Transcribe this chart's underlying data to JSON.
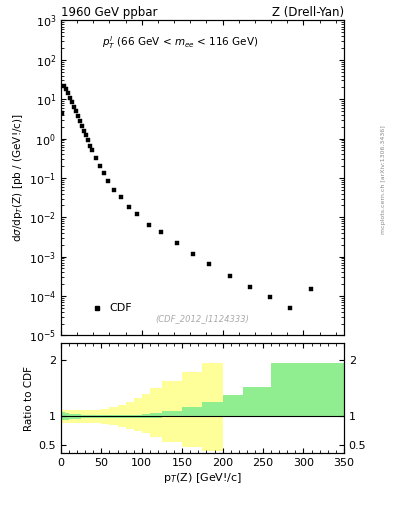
{
  "title_left": "1960 GeV ppbar",
  "title_right": "Z (Drell-Yan)",
  "watermark": "(CDF_2012_I1124333)",
  "arxiv_text": "mcplots.cern.ch [arXiv:1306.3436]",
  "ylabel_bottom": "Ratio to CDF",
  "legend_label": "CDF",
  "data_x": [
    1.25,
    3.75,
    6.25,
    8.75,
    11.25,
    13.75,
    16.25,
    18.75,
    21.25,
    23.75,
    26.25,
    28.75,
    31.25,
    33.75,
    36.25,
    38.75,
    43.75,
    48.75,
    53.75,
    58.75,
    66.25,
    73.75,
    83.75,
    93.75,
    108.75,
    123.75,
    143.75,
    163.75,
    183.75,
    208.75,
    233.75,
    258.75,
    283.75,
    308.75
  ],
  "data_y": [
    4.5,
    22.0,
    18.0,
    14.0,
    11.0,
    8.5,
    6.5,
    5.0,
    3.8,
    2.8,
    2.1,
    1.6,
    1.2,
    0.9,
    0.65,
    0.5,
    0.32,
    0.2,
    0.13,
    0.085,
    0.048,
    0.032,
    0.018,
    0.012,
    0.0065,
    0.0042,
    0.0022,
    0.0012,
    0.00065,
    0.00032,
    0.00017,
    9.5e-05,
    5e-05,
    0.00015
  ],
  "ratio_bin_edges": [
    0,
    5,
    10,
    15,
    20,
    25,
    30,
    35,
    40,
    50,
    60,
    70,
    80,
    90,
    100,
    110,
    125,
    150,
    175,
    200,
    225,
    260,
    300,
    350
  ],
  "ratio_green_lo": [
    0.93,
    0.94,
    0.95,
    0.96,
    0.96,
    0.97,
    0.97,
    0.97,
    0.97,
    0.97,
    0.97,
    0.97,
    0.97,
    0.97,
    0.97,
    0.98,
    0.99,
    1.0,
    1.0,
    1.0,
    1.0,
    1.0,
    1.0
  ],
  "ratio_green_hi": [
    1.07,
    1.06,
    1.05,
    1.04,
    1.04,
    1.03,
    1.03,
    1.03,
    1.03,
    1.03,
    1.03,
    1.03,
    1.03,
    1.03,
    1.04,
    1.06,
    1.1,
    1.16,
    1.25,
    1.38,
    1.52,
    1.95,
    1.95
  ],
  "ratio_yellow_lo": [
    0.88,
    0.88,
    0.88,
    0.88,
    0.88,
    0.88,
    0.88,
    0.88,
    0.88,
    0.86,
    0.84,
    0.82,
    0.78,
    0.74,
    0.7,
    0.64,
    0.55,
    0.46,
    0.38,
    null,
    null,
    null,
    null
  ],
  "ratio_yellow_hi": [
    1.12,
    1.12,
    1.12,
    1.12,
    1.12,
    1.12,
    1.12,
    1.12,
    1.12,
    1.14,
    1.16,
    1.2,
    1.25,
    1.32,
    1.4,
    1.5,
    1.62,
    1.78,
    1.95,
    null,
    null,
    null,
    null
  ],
  "green_color": "#90ee90",
  "yellow_color": "#ffff99",
  "marker_color": "black",
  "marker_size": 3.5,
  "xlim": [
    0,
    350
  ],
  "ylim_top_lo": 1e-05,
  "ylim_top_hi": 1000.0,
  "ylim_bottom_lo": 0.35,
  "ylim_bottom_hi": 2.3
}
